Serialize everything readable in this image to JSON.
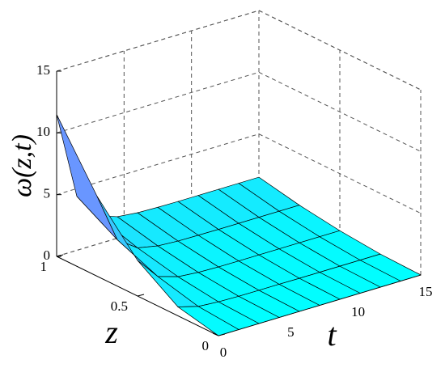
{
  "chart_data": {
    "type": "surface",
    "xlabel": "t",
    "ylabel": "z",
    "zlabel": "ω(z,t)",
    "x": [
      0,
      1.5,
      3,
      4.5,
      6,
      7.5,
      9,
      10.5,
      12,
      13.5,
      15
    ],
    "y": [
      0,
      0.25,
      0.5,
      0.75,
      1
    ],
    "values": [
      [
        0,
        0,
        0,
        0,
        0,
        0,
        0,
        0,
        0,
        0,
        0
      ],
      [
        0.72,
        0.27,
        0.15,
        0.11,
        0.1,
        0.1,
        0.09,
        0.09,
        0.09,
        0.09,
        0.09
      ],
      [
        2.88,
        1.09,
        0.58,
        0.44,
        0.39,
        0.38,
        0.38,
        0.38,
        0.38,
        0.38,
        0.38
      ],
      [
        6.47,
        2.46,
        1.31,
        0.98,
        0.88,
        0.86,
        0.84,
        0.84,
        0.84,
        0.84,
        0.84
      ],
      [
        11.5,
        4.37,
        2.32,
        1.74,
        1.57,
        1.52,
        1.5,
        1.5,
        1.5,
        1.5,
        1.5
      ]
    ],
    "xlim": [
      0,
      15
    ],
    "ylim": [
      0,
      1
    ],
    "zlim": [
      0,
      15
    ],
    "xticks": [
      0,
      5,
      10,
      15
    ],
    "yticks": [
      0,
      0.5,
      1
    ],
    "zticks": [
      0,
      5,
      10,
      15
    ],
    "colormap": [
      "#00ffff",
      "#ff00ff"
    ],
    "grid": true
  }
}
